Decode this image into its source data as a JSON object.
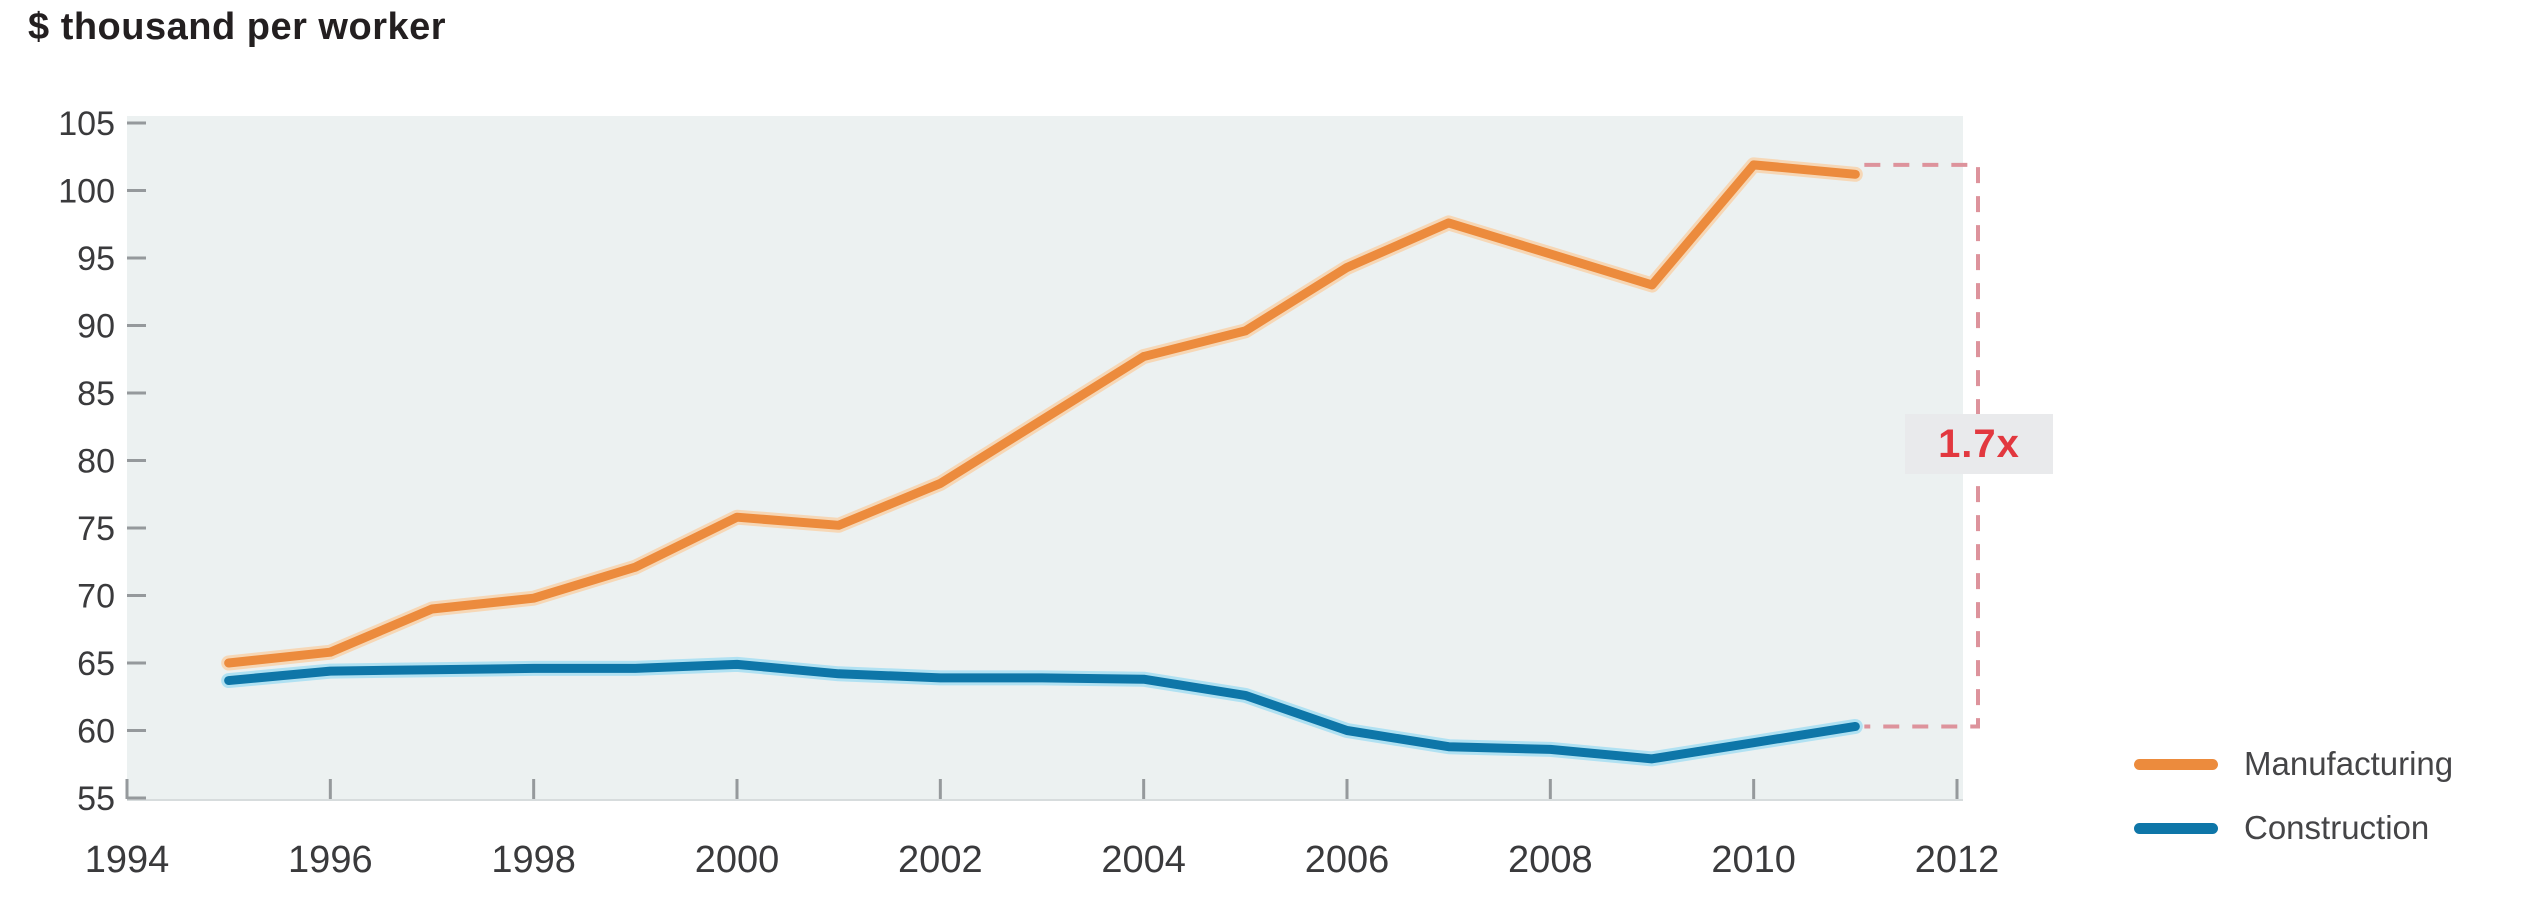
{
  "page": {
    "background": "#ffffff"
  },
  "chart_data": {
    "type": "line",
    "title": "$ thousand per worker",
    "x": [
      1995,
      1996,
      1997,
      1998,
      1999,
      2000,
      2001,
      2002,
      2003,
      2004,
      2005,
      2006,
      2007,
      2008,
      2009,
      2010,
      2011
    ],
    "series": [
      {
        "name": "Manufacturing",
        "color": "#ec8b3d",
        "halo_color": "#f8d2ab",
        "values": [
          65.0,
          65.8,
          69.0,
          69.8,
          72.1,
          75.8,
          75.2,
          78.3,
          83.0,
          87.7,
          89.6,
          94.3,
          97.6,
          95.3,
          93.0,
          101.9,
          101.2
        ]
      },
      {
        "name": "Construction",
        "color": "#0e76a8",
        "halo_color": "#a6def2",
        "values": [
          63.7,
          64.4,
          64.5,
          64.6,
          64.6,
          64.9,
          64.2,
          63.9,
          63.9,
          63.8,
          62.6,
          60.0,
          58.8,
          58.6,
          57.9,
          59.1,
          60.3
        ]
      }
    ],
    "xlim": [
      1994,
      2012
    ],
    "ylim": [
      55,
      105
    ],
    "x_ticks": [
      1994,
      1996,
      1998,
      2000,
      2002,
      2004,
      2006,
      2008,
      2010,
      2012
    ],
    "y_ticks": [
      55,
      60,
      65,
      70,
      75,
      80,
      85,
      90,
      95,
      100,
      105
    ],
    "grid": false,
    "legend_position": "bottom-right",
    "plot_background": "#ecf1f1",
    "axis_text_color": "#3a3a3c",
    "tick_color": "#95999c",
    "annotation": {
      "label": "1.7x",
      "top_value": 101.9,
      "bottom_value": 60.3,
      "line_color": "#dd939c",
      "text_color": "#e2383f",
      "box_color": "#e9eaec"
    }
  }
}
